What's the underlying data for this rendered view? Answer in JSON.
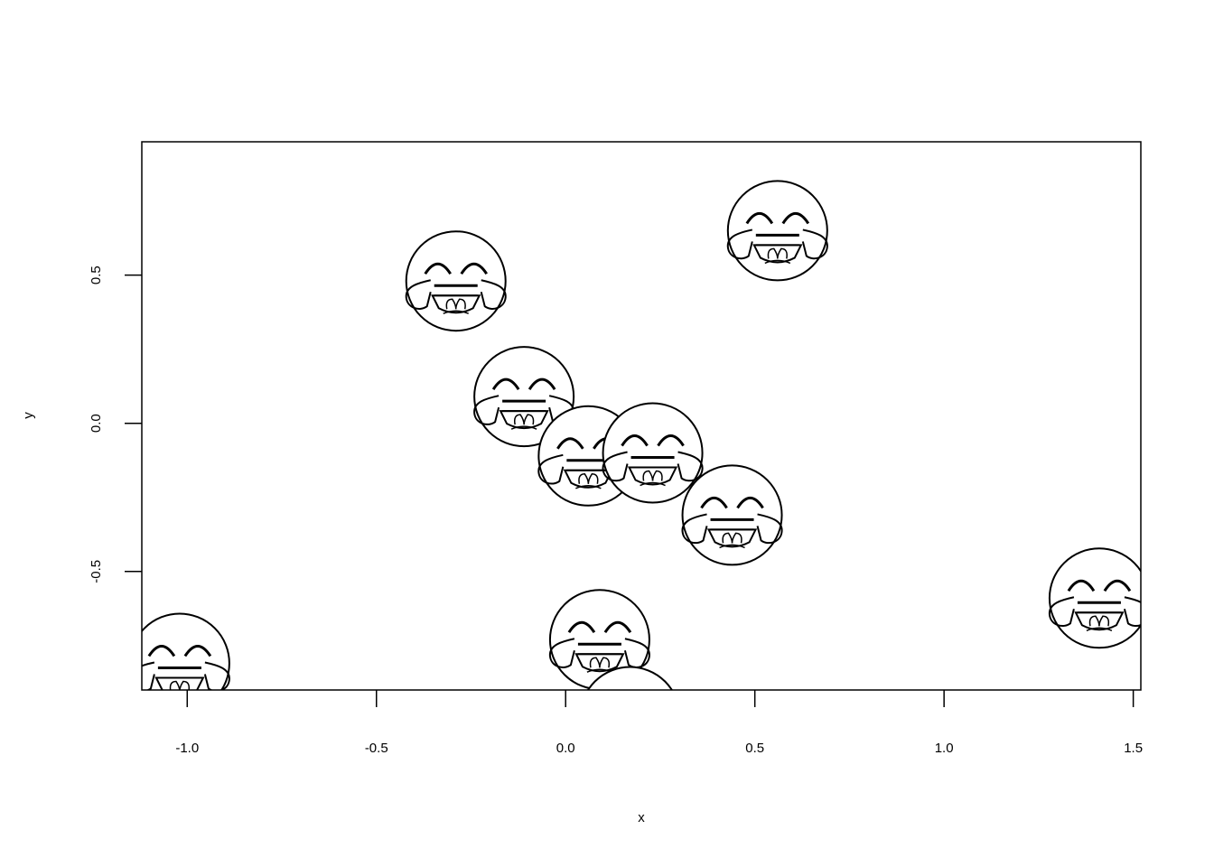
{
  "chart_data": {
    "type": "scatter",
    "title": "",
    "xlabel": "x",
    "ylabel": "y",
    "xlim": [
      -1.12,
      1.52
    ],
    "ylim": [
      -0.9,
      0.95
    ],
    "grid": false,
    "marker": "face-with-tears-of-joy-emoji",
    "x_ticks": [
      -1.0,
      -0.5,
      0.0,
      0.5,
      1.0,
      1.5
    ],
    "x_tick_labels": [
      "-1.0",
      "-0.5",
      "0.0",
      "0.5",
      "1.0",
      "1.5"
    ],
    "y_ticks": [
      -0.5,
      0.0,
      0.5
    ],
    "y_tick_labels": [
      "-0.5",
      "0.0",
      "0.5"
    ],
    "points": [
      {
        "x": -0.29,
        "y": 0.48
      },
      {
        "x": 0.56,
        "y": 0.65
      },
      {
        "x": -0.11,
        "y": 0.09
      },
      {
        "x": 0.06,
        "y": -0.11
      },
      {
        "x": 0.23,
        "y": -0.1
      },
      {
        "x": 0.44,
        "y": -0.31
      },
      {
        "x": 1.41,
        "y": -0.59
      },
      {
        "x": 0.09,
        "y": -0.73
      },
      {
        "x": -1.02,
        "y": -0.81
      },
      {
        "x": 0.17,
        "y": -0.99
      }
    ]
  }
}
